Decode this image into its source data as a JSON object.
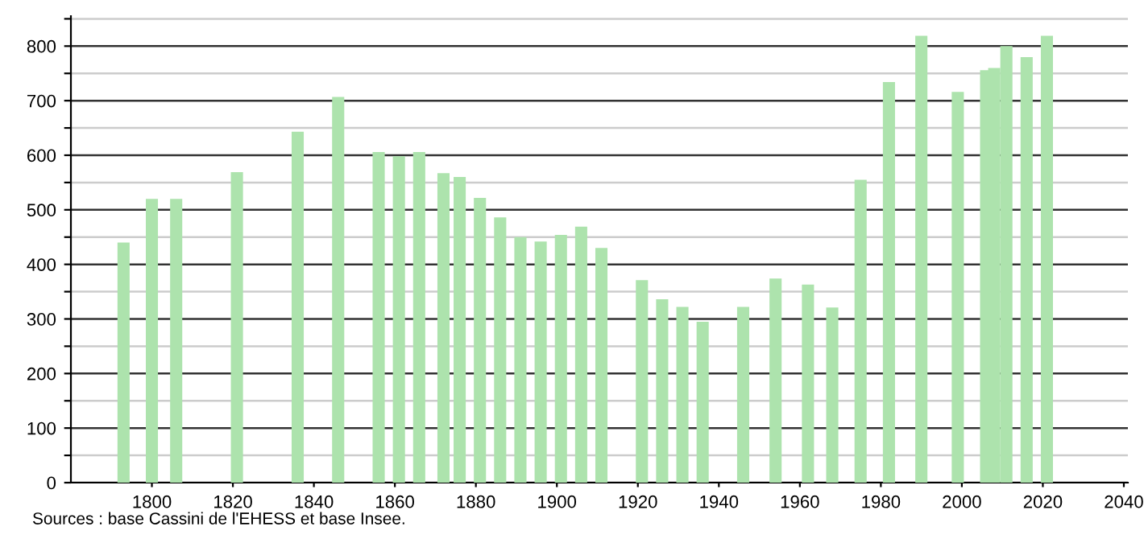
{
  "chart_data": {
    "type": "bar",
    "x": [
      1793,
      1800,
      1806,
      1821,
      1836,
      1846,
      1856,
      1861,
      1866,
      1872,
      1876,
      1881,
      1886,
      1891,
      1896,
      1901,
      1906,
      1911,
      1921,
      1926,
      1931,
      1936,
      1946,
      1954,
      1962,
      1968,
      1975,
      1982,
      1990,
      1999,
      2006,
      2008,
      2011,
      2016,
      2021
    ],
    "values": [
      440,
      520,
      520,
      569,
      643,
      707,
      606,
      598,
      606,
      567,
      560,
      522,
      486,
      450,
      442,
      454,
      469,
      430,
      371,
      336,
      322,
      295,
      322,
      374,
      363,
      321,
      555,
      734,
      819,
      716,
      756,
      760,
      800,
      780,
      819
    ],
    "color": "#ade3ad",
    "xlim": [
      1780,
      2041
    ],
    "xticks": [
      1800,
      1820,
      1840,
      1860,
      1880,
      1900,
      1920,
      1940,
      1960,
      1980,
      2000,
      2020,
      2040
    ],
    "ylim": [
      0,
      855
    ],
    "yticks": [
      0,
      {
        "value": 50,
        "label": null
      },
      100,
      {
        "value": 150,
        "label": null
      },
      200,
      {
        "value": 250,
        "label": null
      },
      300,
      {
        "value": 350,
        "label": null
      },
      400,
      {
        "value": 450,
        "label": null
      },
      500,
      {
        "value": 550,
        "label": null
      },
      600,
      {
        "value": 650,
        "label": null
      },
      700,
      {
        "value": 750,
        "label": null
      },
      800,
      {
        "value": 850,
        "label": null
      }
    ],
    "grid": "y",
    "annotations": [
      "Sources : base Cassini de l'EHESS et base Insee."
    ]
  }
}
